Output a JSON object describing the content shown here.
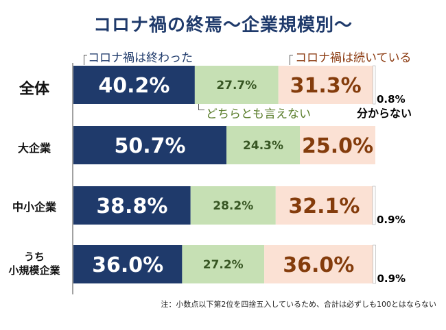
{
  "title": "コロナ禍の終焉～企業規模別～",
  "note": "注：小数点以下第2位を四捨五入しているため、合計は必ずしも100とはならない",
  "colors": {
    "yes": "#1f3a6b",
    "unsure": "#c6e0b4",
    "no": "#fbe1d4",
    "unknown": "#ffffff",
    "yes_text": "#ffffff",
    "unsure_text": "#375623",
    "no_text": "#843c0c",
    "axis": "#444444"
  },
  "chart_data": {
    "type": "bar",
    "orientation": "horizontal",
    "stacked": true,
    "title": "コロナ禍の終焉～企業規模別～",
    "categories": [
      "全体",
      "大企業",
      "中小企業",
      "うち\n小規模企業"
    ],
    "series": [
      {
        "name": "コロナ禍は終わった",
        "key": "yes",
        "values": [
          40.2,
          50.7,
          38.8,
          36.0
        ],
        "labels": [
          "40.2%",
          "50.7%",
          "38.8%",
          "36.0%"
        ]
      },
      {
        "name": "どちらとも言えない",
        "key": "unsure",
        "values": [
          27.7,
          24.3,
          28.2,
          27.2
        ],
        "labels": [
          "27.7%",
          "24.3%",
          "28.2%",
          "27.2%"
        ]
      },
      {
        "name": "コロナ禍は続いている",
        "key": "no",
        "values": [
          31.3,
          25.0,
          32.1,
          36.0
        ],
        "labels": [
          "31.3%",
          "25.0%",
          "32.1%",
          "36.0%"
        ]
      },
      {
        "name": "分からない",
        "key": "unknown",
        "values": [
          0.8,
          0.0,
          0.9,
          0.9
        ],
        "labels": [
          "0.8%",
          "",
          "0.9%",
          "0.9%"
        ]
      }
    ],
    "xlim": [
      0,
      100
    ],
    "grid": false,
    "legend": "inline-annotations"
  }
}
